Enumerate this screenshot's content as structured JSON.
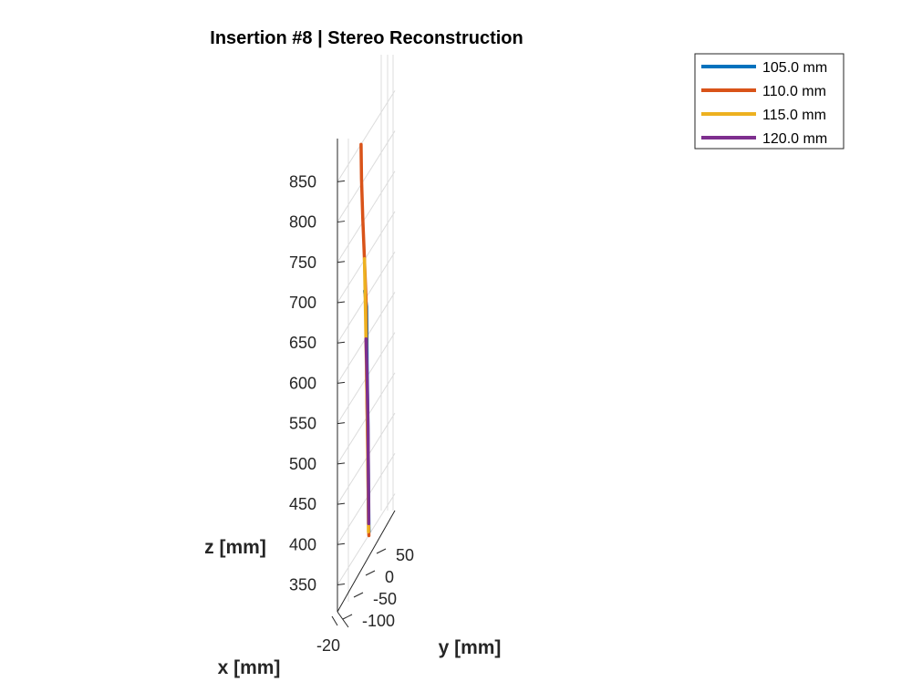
{
  "chart_data": {
    "type": "line",
    "title": "Insertion #8 | Stereo Reconstruction",
    "xlabel": "x [mm]",
    "ylabel": "y [mm]",
    "zlabel": "z [mm]",
    "x_ticks": [
      "-20"
    ],
    "y_ticks": [
      "-100",
      "-50",
      "0",
      "50"
    ],
    "z_ticks": [
      "350",
      "400",
      "450",
      "500",
      "550",
      "600",
      "650",
      "700",
      "750",
      "800",
      "850"
    ],
    "zlim": [
      305,
      895
    ],
    "ylim": [
      -115,
      65
    ],
    "grid": true,
    "legend_position": "top-right",
    "series": [
      {
        "name": "105.0 mm",
        "color": "#0072BD",
        "y": [
          -24,
          -25,
          -27,
          -30,
          -33,
          -34,
          -35,
          -44
        ],
        "z": [
          410,
          415,
          480,
          560,
          620,
          660,
          690,
          710
        ]
      },
      {
        "name": "110.0 mm",
        "color": "#D95319",
        "y": [
          -25,
          -26,
          -30,
          -35,
          -38,
          -45,
          -52,
          -58,
          -60
        ],
        "z": [
          405,
          412,
          500,
          600,
          700,
          750,
          800,
          850,
          893
        ]
      },
      {
        "name": "115.0 mm",
        "color": "#EDB120",
        "y": [
          -27,
          -30,
          -35,
          -40,
          -45
        ],
        "z": [
          410,
          520,
          600,
          680,
          750
        ]
      },
      {
        "name": "120.0 mm",
        "color": "#7E2F8E",
        "y": [
          -26,
          -29,
          -33,
          -38
        ],
        "z": [
          420,
          540,
          600,
          650
        ]
      }
    ]
  }
}
